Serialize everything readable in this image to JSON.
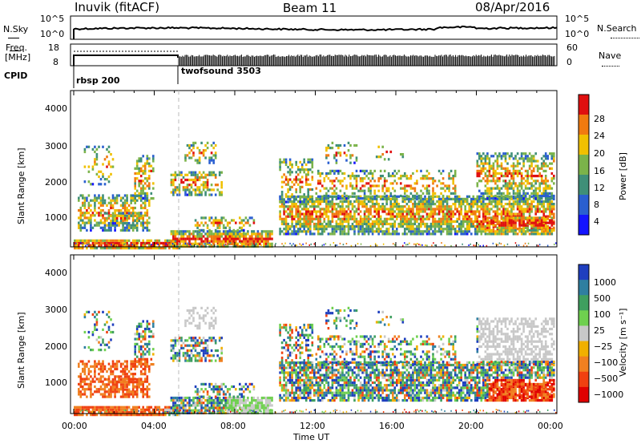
{
  "header": {
    "station": "Inuvik (fitACF)",
    "beam": "Beam 11",
    "date": "08/Apr/2016"
  },
  "sky_panel": {
    "left_label": "N.Sky",
    "right_label": "N.Search",
    "left_ticks": [
      "10^5",
      "10^0"
    ],
    "right_ticks": [
      "10^5",
      "10^0"
    ]
  },
  "freq_panel": {
    "left_label_1": "Freq.",
    "left_label_2": "[MHz]",
    "left_ticks": [
      "18",
      "8"
    ],
    "right_label": "Nave",
    "right_ticks": [
      "60",
      "0"
    ]
  },
  "cpid": {
    "label": "CPID",
    "segments": [
      {
        "name": "rbsp 200",
        "start_hour": 0.0
      },
      {
        "name": "twofsound 3503",
        "start_hour": 5.3
      }
    ]
  },
  "chart_data": [
    {
      "type": "heatmap",
      "name": "power",
      "ylabel": "Slant Range [km]",
      "y_ticks": [
        "1000",
        "2000",
        "3000",
        "4000"
      ],
      "ylim": [
        200,
        4600
      ],
      "colorbar_label": "Power [dB]",
      "colorbar_ticks": [
        "4",
        "8",
        "12",
        "16",
        "20",
        "24",
        "28"
      ],
      "colors": [
        "#1414ff",
        "#2a5fd0",
        "#3f8f78",
        "#7bb34a",
        "#f0c000",
        "#f07a10",
        "#e01010"
      ],
      "range": [
        0,
        30
      ]
    },
    {
      "type": "heatmap",
      "name": "velocity",
      "ylabel": "Slant Range [km]",
      "y_ticks": [
        "1000",
        "2000",
        "3000",
        "4000"
      ],
      "ylim": [
        200,
        4600
      ],
      "colorbar_label": "Velocity [m s⁻¹]",
      "colorbar_ticks": [
        "1000",
        "500",
        "100",
        "25",
        "−25",
        "−100",
        "−500",
        "−1000"
      ],
      "colors": [
        "#1f3fbf",
        "#2f7fa0",
        "#3f9f5f",
        "#6fd04f",
        "#c8c8c8",
        "#f0b000",
        "#f08020",
        "#f04010",
        "#e00000"
      ],
      "range": [
        -1200,
        1200
      ]
    }
  ],
  "time_axis": {
    "label": "Time UT",
    "ticks": [
      "00:00",
      "04:00",
      "08:00",
      "12:00",
      "16:00",
      "20:00",
      "00:00"
    ]
  }
}
